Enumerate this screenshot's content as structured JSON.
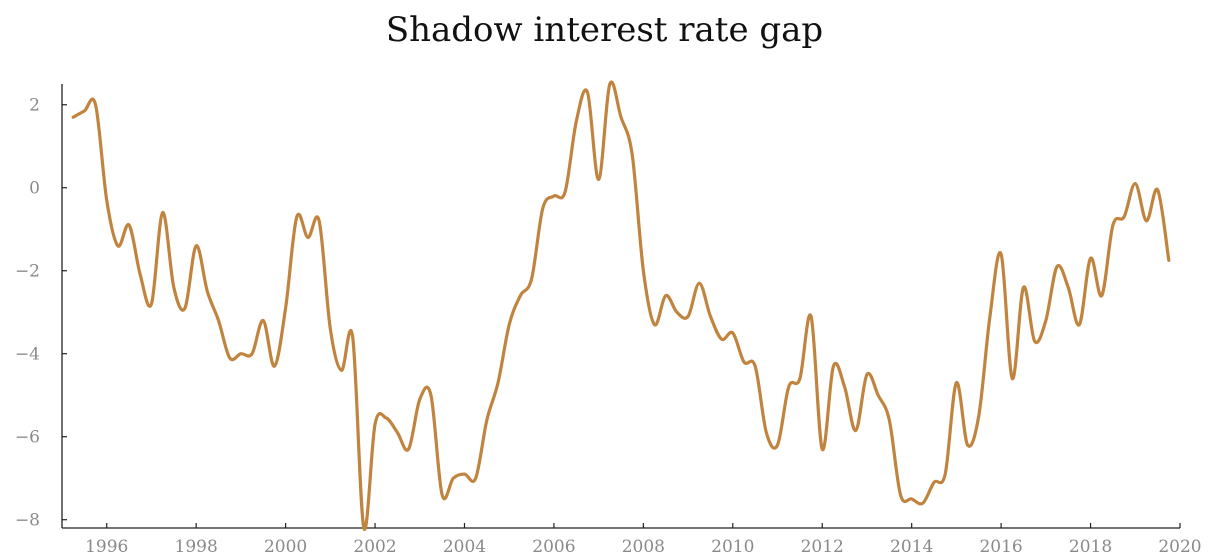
{
  "chart_data": {
    "type": "line",
    "title": "Shadow interest rate gap",
    "xlabel": "",
    "ylabel": "",
    "xlim": [
      1995.0,
      2020.0
    ],
    "ylim": [
      -8.2,
      2.5
    ],
    "grid": false,
    "legend": "none",
    "x_ticks": [
      1996,
      1998,
      2000,
      2002,
      2004,
      2006,
      2008,
      2010,
      2012,
      2014,
      2016,
      2018,
      2020
    ],
    "y_ticks": [
      2,
      0,
      -2,
      -4,
      -6,
      -8
    ],
    "y_tick_labels": [
      "2",
      "0",
      "−2",
      "−4",
      "−6",
      "−8"
    ],
    "series": [
      {
        "color": "#c0843f",
        "x": [
          1995.25,
          1995.5,
          1995.75,
          1996.0,
          1996.25,
          1996.5,
          1996.75,
          1997.0,
          1997.25,
          1997.5,
          1997.75,
          1998.0,
          1998.25,
          1998.5,
          1998.75,
          1999.0,
          1999.25,
          1999.5,
          1999.75,
          2000.0,
          2000.25,
          2000.5,
          2000.75,
          2001.0,
          2001.25,
          2001.5,
          2001.75,
          2002.0,
          2002.25,
          2002.5,
          2002.75,
          2003.0,
          2003.25,
          2003.5,
          2003.75,
          2004.0,
          2004.25,
          2004.5,
          2004.75,
          2005.0,
          2005.25,
          2005.5,
          2005.75,
          2006.0,
          2006.25,
          2006.5,
          2006.75,
          2007.0,
          2007.25,
          2007.5,
          2007.75,
          2008.0,
          2008.25,
          2008.5,
          2008.75,
          2009.0,
          2009.25,
          2009.5,
          2009.75,
          2010.0,
          2010.25,
          2010.5,
          2010.75,
          2011.0,
          2011.25,
          2011.5,
          2011.75,
          2012.0,
          2012.25,
          2012.5,
          2012.75,
          2013.0,
          2013.25,
          2013.5,
          2013.75,
          2014.0,
          2014.25,
          2014.5,
          2014.75,
          2015.0,
          2015.25,
          2015.5,
          2015.75,
          2016.0,
          2016.25,
          2016.5,
          2016.75,
          2017.0,
          2017.25,
          2017.5,
          2017.75,
          2018.0,
          2018.25,
          2018.5,
          2018.75,
          2019.0,
          2019.25,
          2019.5,
          2019.75
        ],
        "y": [
          1.7,
          1.85,
          2.0,
          -0.3,
          -1.4,
          -0.9,
          -2.1,
          -2.8,
          -0.6,
          -2.4,
          -2.9,
          -1.4,
          -2.5,
          -3.2,
          -4.1,
          -4.0,
          -4.0,
          -3.2,
          -4.3,
          -2.9,
          -0.7,
          -1.2,
          -0.8,
          -3.4,
          -4.4,
          -3.6,
          -8.2,
          -5.7,
          -5.55,
          -5.9,
          -6.3,
          -5.1,
          -5.0,
          -7.4,
          -7.0,
          -6.9,
          -7.0,
          -5.6,
          -4.7,
          -3.3,
          -2.6,
          -2.2,
          -0.5,
          -0.2,
          -0.1,
          1.6,
          2.3,
          0.2,
          2.5,
          1.7,
          0.8,
          -2.0,
          -3.3,
          -2.6,
          -3.0,
          -3.1,
          -2.3,
          -3.1,
          -3.65,
          -3.5,
          -4.2,
          -4.3,
          -5.9,
          -6.2,
          -4.8,
          -4.6,
          -3.1,
          -6.3,
          -4.3,
          -4.8,
          -5.85,
          -4.5,
          -5.0,
          -5.6,
          -7.4,
          -7.5,
          -7.6,
          -7.1,
          -6.9,
          -4.7,
          -6.2,
          -5.5,
          -3.1,
          -1.6,
          -4.6,
          -2.4,
          -3.7,
          -3.2,
          -1.9,
          -2.4,
          -3.3,
          -1.7,
          -2.6,
          -0.9,
          -0.7,
          0.1,
          -0.8,
          -0.05,
          -1.75
        ]
      }
    ]
  }
}
